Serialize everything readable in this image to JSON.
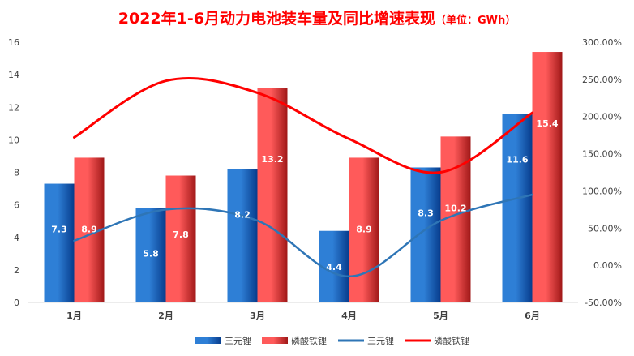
{
  "chart_data": {
    "type": "bar",
    "title": "2022年1-6月动力电池装车量及同比增速表现",
    "title_unit": "（单位：GWh）",
    "categories": [
      "1月",
      "2月",
      "3月",
      "4月",
      "5月",
      "6月"
    ],
    "ylim": [
      0,
      16
    ],
    "y_ticks": [
      0,
      2,
      4,
      6,
      8,
      10,
      12,
      14,
      16
    ],
    "y2lim": [
      -50,
      300
    ],
    "y2_ticks": [
      -50,
      0,
      50,
      100,
      150,
      200,
      250,
      300
    ],
    "y2_tick_labels": [
      "-50.00%",
      "0.00%",
      "50.00%",
      "100.00%",
      "150.00%",
      "200.00%",
      "250.00%",
      "300.00%"
    ],
    "series": [
      {
        "name": "三元锂",
        "kind": "bar",
        "axis": "left",
        "values": [
          7.3,
          5.8,
          8.2,
          4.4,
          8.3,
          11.6
        ],
        "labels": [
          "7.3",
          "5.8",
          "8.2",
          "4.4",
          "8.3",
          "11.6"
        ]
      },
      {
        "name": "磷酸铁锂",
        "kind": "bar",
        "axis": "left",
        "values": [
          8.9,
          7.8,
          13.2,
          8.9,
          10.2,
          15.4
        ],
        "labels": [
          "8.9",
          "7.8",
          "13.2",
          "8.9",
          "10.2",
          "15.4"
        ]
      },
      {
        "name": "三元锂",
        "kind": "line",
        "axis": "right",
        "values": [
          33,
          75,
          60,
          -15,
          60,
          95
        ]
      },
      {
        "name": "磷酸铁锂",
        "kind": "line",
        "axis": "right",
        "values": [
          172,
          248,
          232,
          170,
          125,
          205
        ]
      }
    ],
    "colors": {
      "bar1_light": "#2e7fd6",
      "bar1_dark": "#073c8c",
      "bar2_light": "#ff5a5a",
      "bar2_dark": "#a01818",
      "line1": "#2e75b6",
      "line2": "#ff0000",
      "axis": "#d9d9d9"
    },
    "legend": "bottom",
    "grid": false
  }
}
